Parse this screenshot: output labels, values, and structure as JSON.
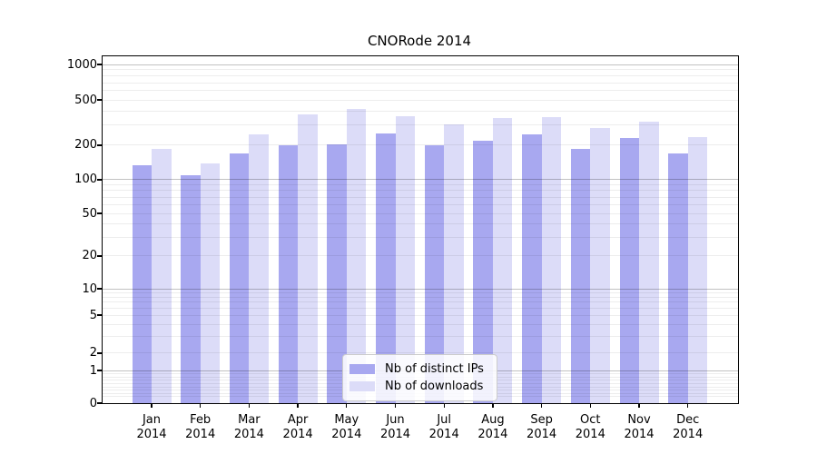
{
  "title": "CNORode 2014",
  "colors": {
    "distinct_ips_bar": "#a8a8f0",
    "downloads_bar": "#dcdcf8",
    "grid_major": "rgba(0,0,0,0.24)",
    "grid_minor": "rgba(0,0,0,0.07)",
    "axis": "#000000",
    "legend_border": "#cccccc"
  },
  "y_axis": {
    "tick_labels": [
      "0",
      "1",
      "2",
      "5",
      "10",
      "20",
      "50",
      "100",
      "200",
      "500",
      "1000"
    ]
  },
  "x_axis": {
    "months": [
      "Jan",
      "Feb",
      "Mar",
      "Apr",
      "May",
      "Jun",
      "Jul",
      "Aug",
      "Sep",
      "Oct",
      "Nov",
      "Dec"
    ],
    "year": "2014"
  },
  "chart_data": {
    "type": "bar",
    "title": "CNORode 2014",
    "categories": [
      "Jan 2014",
      "Feb 2014",
      "Mar 2014",
      "Apr 2014",
      "May 2014",
      "Jun 2014",
      "Jul 2014",
      "Aug 2014",
      "Sep 2014",
      "Oct 2014",
      "Nov 2014",
      "Dec 2014"
    ],
    "series": [
      {
        "name": "Nb of distinct IPs",
        "color": "#a8a8f0",
        "values": [
          135,
          110,
          170,
          200,
          205,
          255,
          200,
          220,
          250,
          185,
          230,
          170
        ]
      },
      {
        "name": "Nb of downloads",
        "color": "#dcdcf8",
        "values": [
          185,
          140,
          250,
          370,
          415,
          360,
          305,
          345,
          355,
          285,
          325,
          235
        ]
      }
    ],
    "xlabel": "",
    "ylabel": "",
    "yscale": "log-like (compressed log10(1+v), zero shown at axis bottom)",
    "yticks": [
      0,
      1,
      2,
      5,
      10,
      20,
      50,
      100,
      200,
      500,
      1000
    ],
    "ylim": [
      0,
      1180
    ],
    "grid": true,
    "grid_major_at": [
      1,
      10,
      100,
      1000
    ],
    "legend_position": "inside, lower center"
  }
}
